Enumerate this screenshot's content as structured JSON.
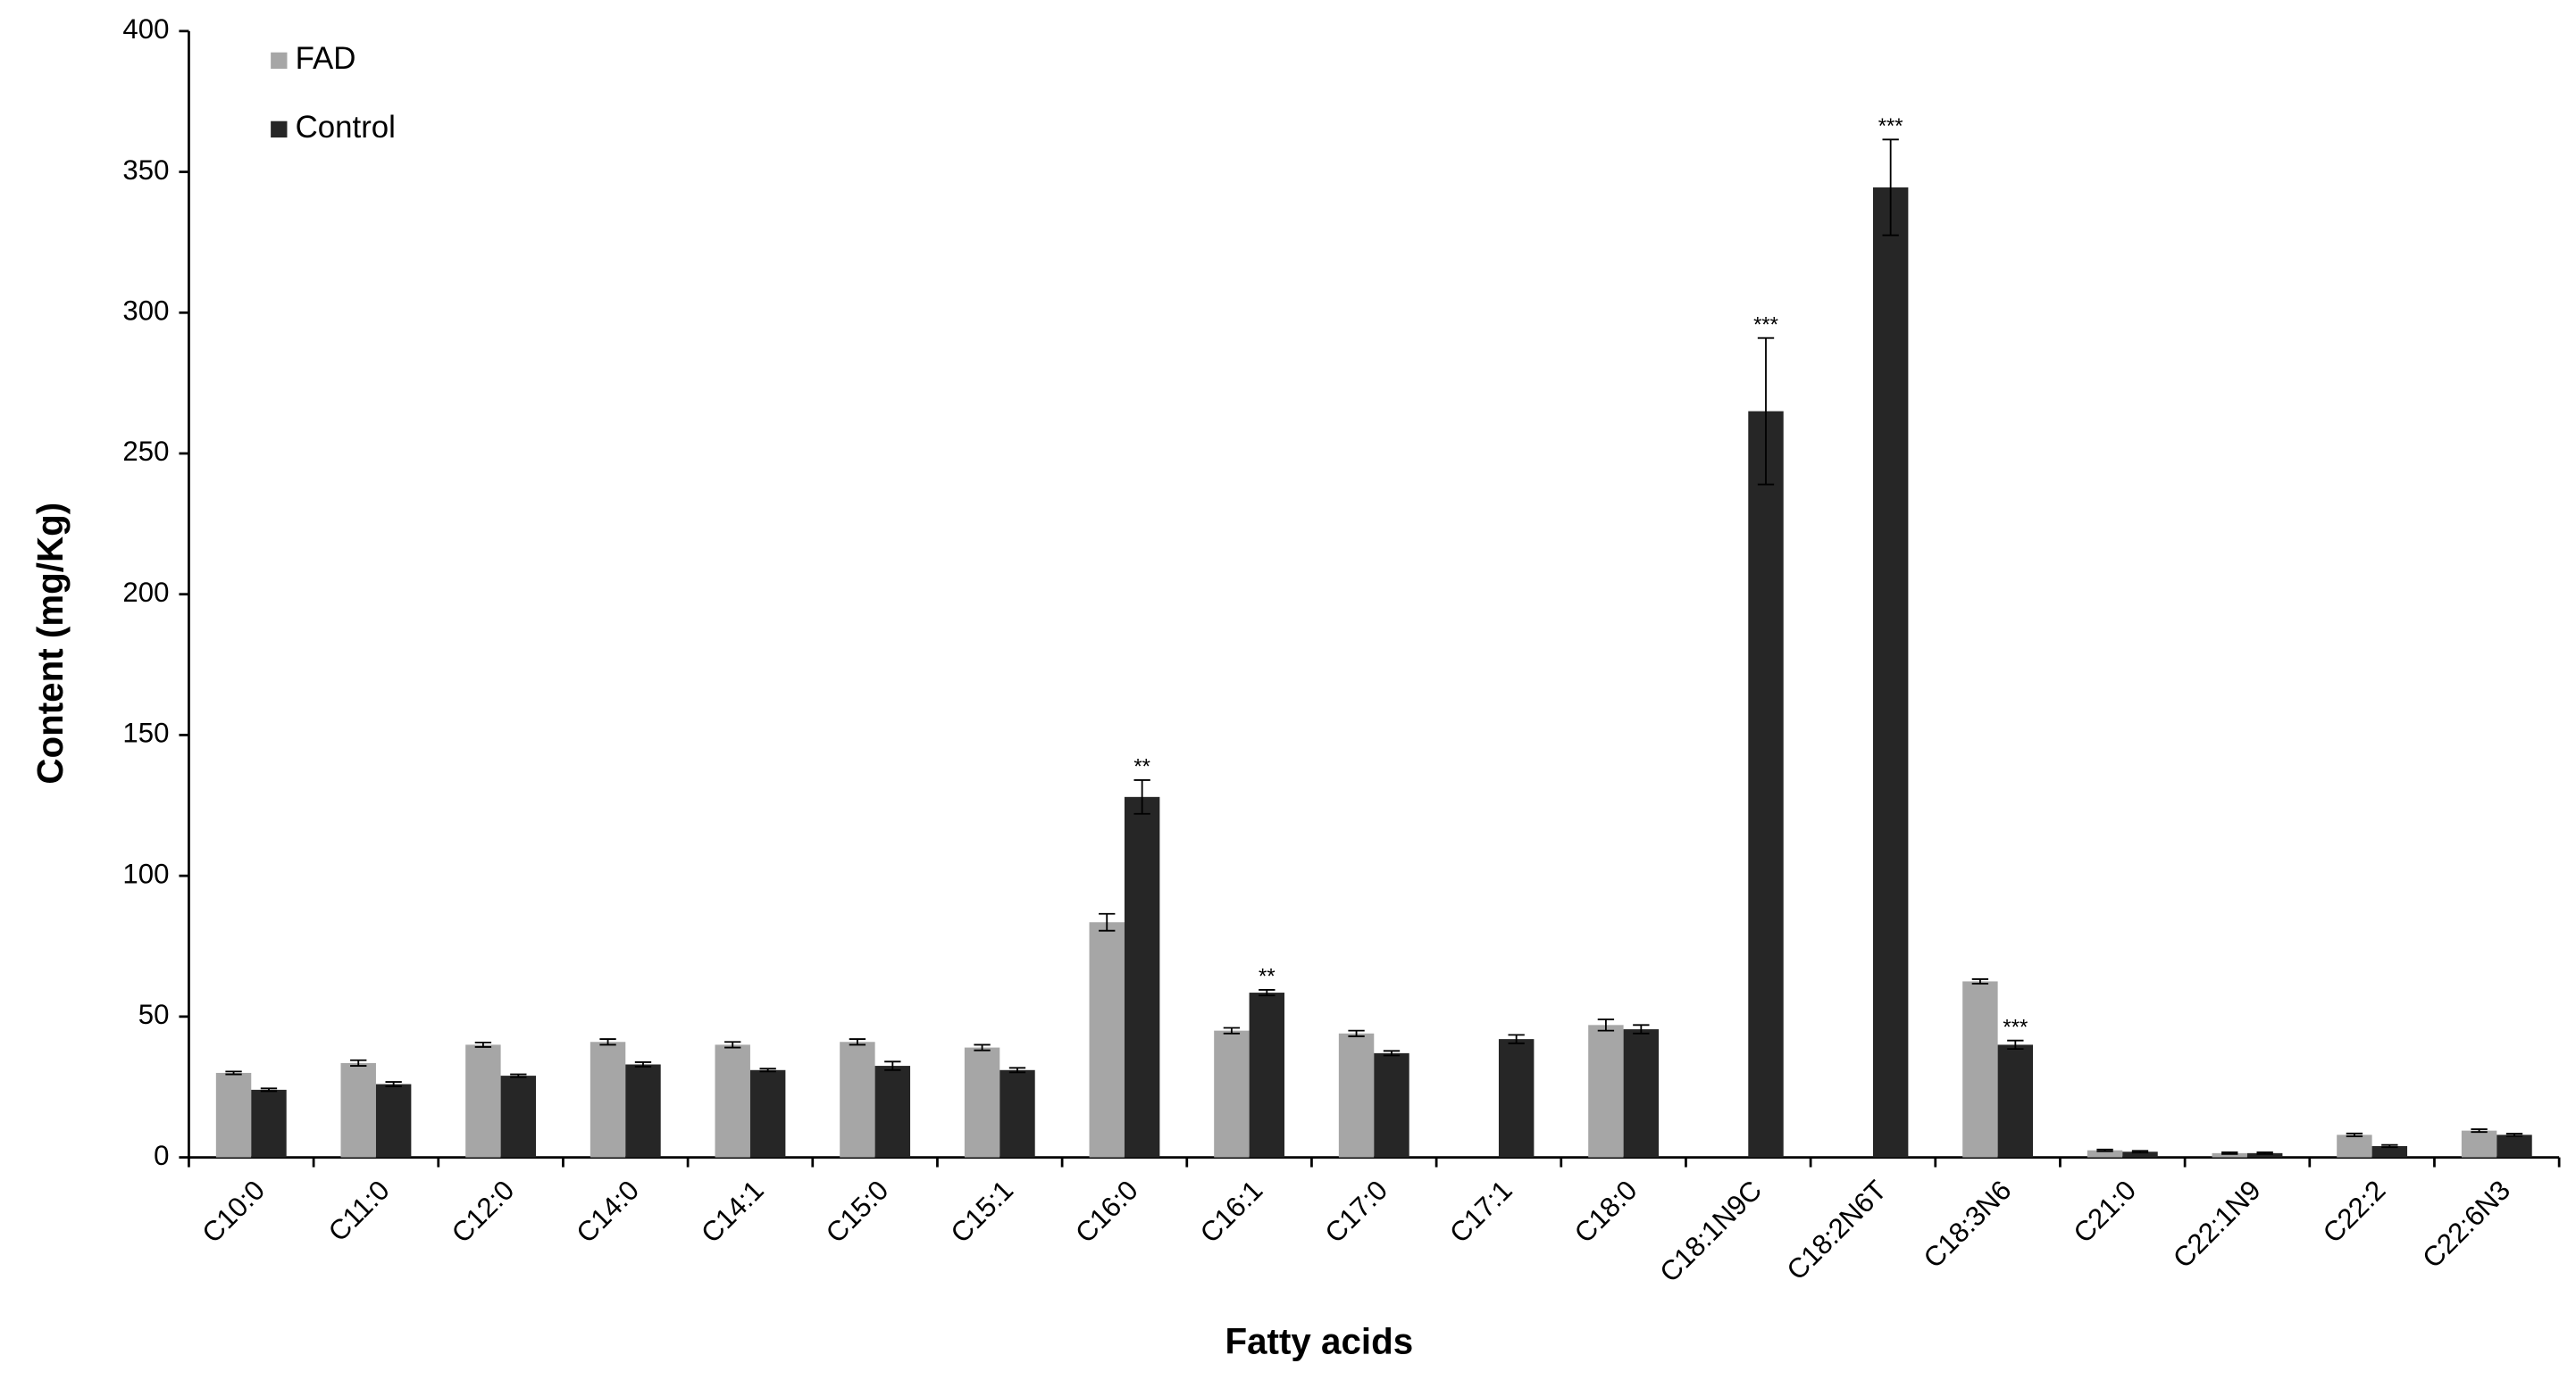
{
  "chart_data": {
    "type": "bar",
    "x_label": "Fatty acids",
    "y_label": "Content (mg/Kg)",
    "categories": [
      "C10:0",
      "C11:0",
      "C12:0",
      "C14:0",
      "C14:1",
      "C15:0",
      "C15:1",
      "C16:0",
      "C16:1",
      "C17:0",
      "C17:1",
      "C18:0",
      "C18:1N9C",
      "C18:2N6T",
      "C18:3N6",
      "C21:0",
      "C22:1N9",
      "C22:2",
      "C22:6N3"
    ],
    "series": [
      {
        "name": "FAD",
        "color": "#a6a6a6",
        "values": [
          30,
          33.5,
          40,
          41,
          40,
          41,
          39,
          83.5,
          45,
          44,
          null,
          47,
          null,
          null,
          62.5,
          2.5,
          1.5,
          8,
          9.5
        ],
        "errors": [
          0.5,
          1,
          0.8,
          1,
          1,
          1,
          1,
          3,
          1,
          1,
          null,
          2,
          null,
          null,
          0.8,
          0.3,
          0.3,
          0.5,
          0.5
        ]
      },
      {
        "name": "Control",
        "color": "#262626",
        "values": [
          24,
          26,
          29,
          33,
          31,
          32.5,
          31,
          128,
          58.5,
          37,
          42,
          45.5,
          265,
          344.5,
          40,
          2,
          1.5,
          4,
          8
        ],
        "errors": [
          0.5,
          0.8,
          0.5,
          0.8,
          0.5,
          1.5,
          0.8,
          6,
          1,
          0.8,
          1.5,
          1.5,
          26,
          17,
          1.5,
          0.3,
          0.3,
          0.4,
          0.4
        ],
        "significance": [
          null,
          null,
          null,
          null,
          null,
          null,
          null,
          "**",
          "**",
          null,
          null,
          null,
          "***",
          "***",
          "***",
          null,
          null,
          null,
          null
        ]
      }
    ],
    "ylim": [
      0,
      400
    ],
    "yticks": [
      0,
      50,
      100,
      150,
      200,
      250,
      300,
      350,
      400
    ],
    "grid": false,
    "legend": "upper left"
  }
}
